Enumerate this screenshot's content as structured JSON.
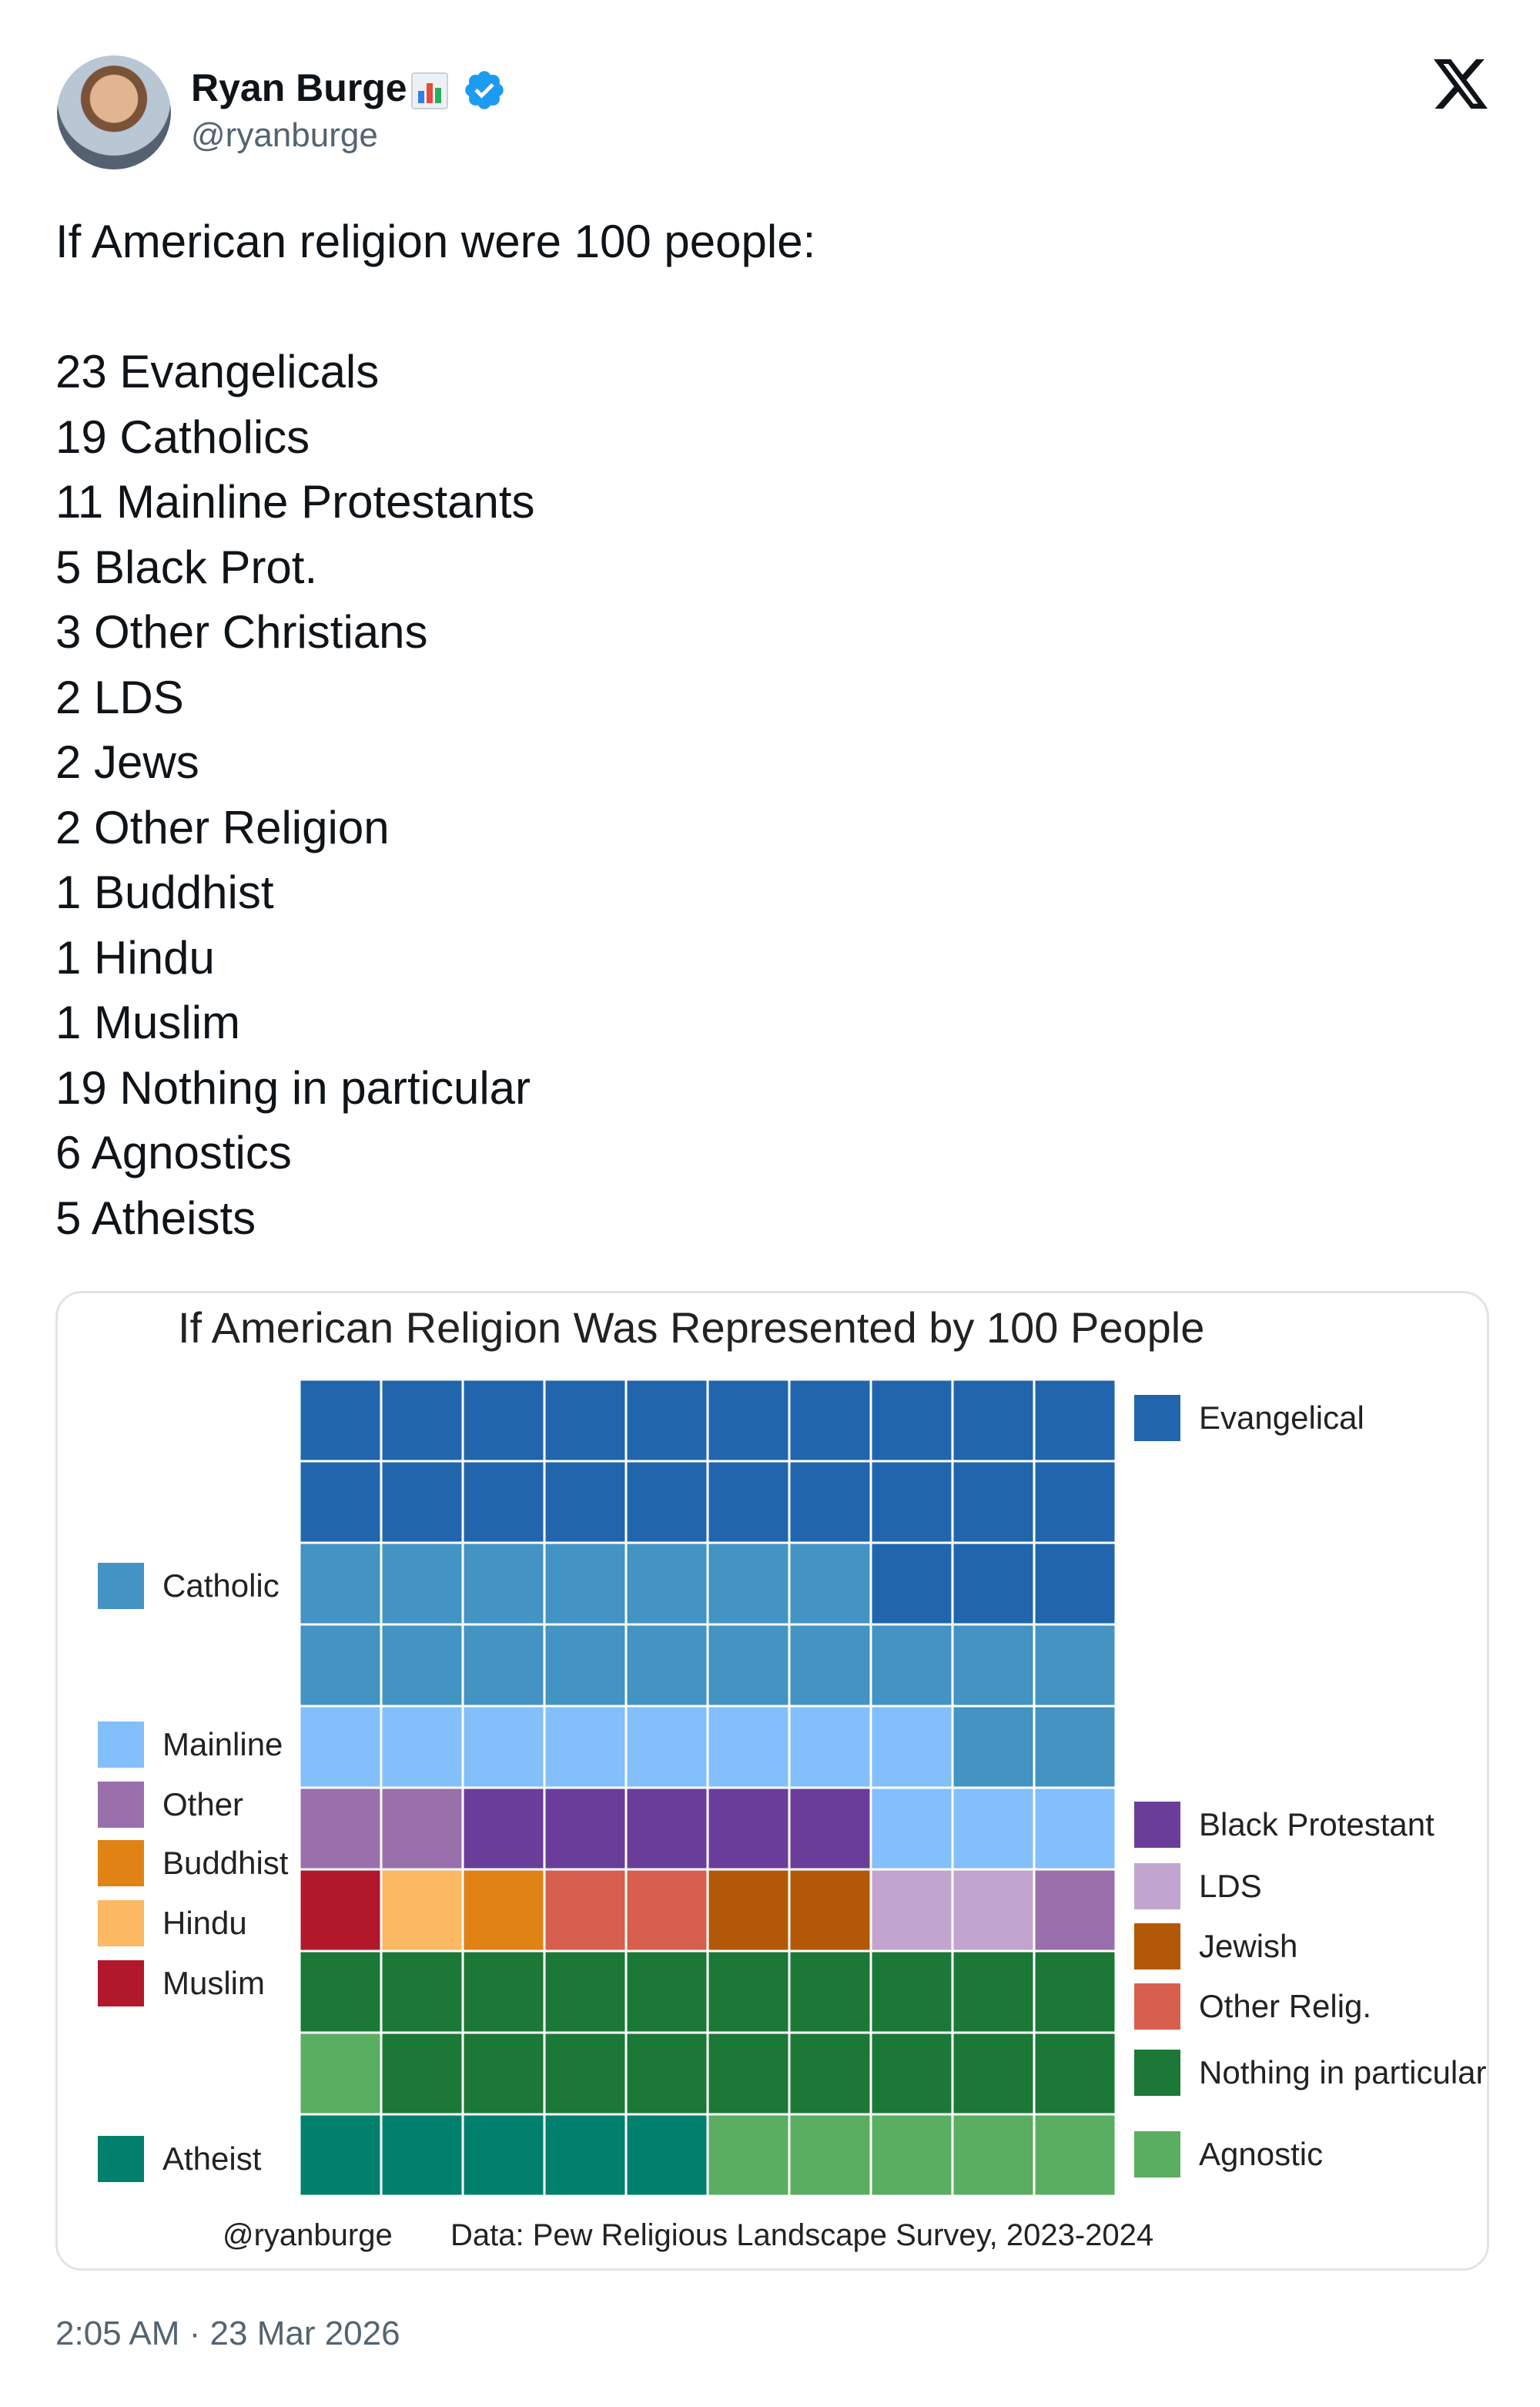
{
  "post": {
    "author_name": "Ryan Burge",
    "author_emoji_icon": "bar-chart-icon",
    "verified": true,
    "handle": "@ryanburge",
    "text_intro": "If American religion were 100 people:",
    "lines": [
      "23 Evangelicals",
      "19 Catholics",
      "11 Mainline Protestants",
      "5 Black Prot.",
      "3 Other Christians",
      "2 LDS",
      "2 Jews",
      "2 Other Religion",
      "1 Buddhist",
      "1 Hindu",
      "1 Muslim",
      "19 Nothing in particular",
      "6 Agnostics",
      "5 Atheists"
    ],
    "timestamp": "2:05 AM · 23 Mar 2026"
  },
  "colors": {
    "verified_blue": "#1d9bf0",
    "handle_gray": "#536471"
  },
  "chart_data": {
    "type": "waffle",
    "title": "If American Religion Was Represented by 100 People",
    "grid_rows": 10,
    "grid_cols": 10,
    "categories": [
      {
        "key": "Evangelical",
        "label": "Evangelical",
        "value": 23,
        "color": "#2166ac"
      },
      {
        "key": "Catholic",
        "label": "Catholic",
        "value": 19,
        "color": "#4393c3"
      },
      {
        "key": "Mainline",
        "label": "Mainline",
        "value": 11,
        "color": "#82bffb"
      },
      {
        "key": "BlackProtestant",
        "label": "Black Protestant",
        "value": 5,
        "color": "#6a3d9a"
      },
      {
        "key": "Other",
        "label": "Other",
        "value": 3,
        "color": "#9970ab"
      },
      {
        "key": "LDS",
        "label": "LDS",
        "value": 2,
        "color": "#c2a5cf"
      },
      {
        "key": "Jewish",
        "label": "Jewish",
        "value": 2,
        "color": "#b35806"
      },
      {
        "key": "OtherRelig",
        "label": "Other Relig.",
        "value": 2,
        "color": "#d6604d"
      },
      {
        "key": "Buddhist",
        "label": "Buddhist",
        "value": 1,
        "color": "#e08214"
      },
      {
        "key": "Hindu",
        "label": "Hindu",
        "value": 1,
        "color": "#fdb863"
      },
      {
        "key": "Muslim",
        "label": "Muslim",
        "value": 1,
        "color": "#b2182b"
      },
      {
        "key": "Nothing",
        "label": "Nothing in particular",
        "value": 19,
        "color": "#1b7837"
      },
      {
        "key": "Agnostic",
        "label": "Agnostic",
        "value": 6,
        "color": "#5aae61"
      },
      {
        "key": "Atheist",
        "label": "Atheist",
        "value": 5,
        "color": "#01806d"
      }
    ],
    "cells_by_row": [
      [
        "Evangelical",
        "Evangelical",
        "Evangelical",
        "Evangelical",
        "Evangelical",
        "Evangelical",
        "Evangelical",
        "Evangelical",
        "Evangelical",
        "Evangelical"
      ],
      [
        "Evangelical",
        "Evangelical",
        "Evangelical",
        "Evangelical",
        "Evangelical",
        "Evangelical",
        "Evangelical",
        "Evangelical",
        "Evangelical",
        "Evangelical"
      ],
      [
        "Catholic",
        "Catholic",
        "Catholic",
        "Catholic",
        "Catholic",
        "Catholic",
        "Catholic",
        "Evangelical",
        "Evangelical",
        "Evangelical"
      ],
      [
        "Catholic",
        "Catholic",
        "Catholic",
        "Catholic",
        "Catholic",
        "Catholic",
        "Catholic",
        "Catholic",
        "Catholic",
        "Catholic"
      ],
      [
        "Mainline",
        "Mainline",
        "Mainline",
        "Mainline",
        "Mainline",
        "Mainline",
        "Mainline",
        "Mainline",
        "Catholic",
        "Catholic"
      ],
      [
        "Other",
        "Other",
        "BlackProtestant",
        "BlackProtestant",
        "BlackProtestant",
        "BlackProtestant",
        "BlackProtestant",
        "Mainline",
        "Mainline",
        "Mainline"
      ],
      [
        "Muslim",
        "Hindu",
        "Buddhist",
        "OtherRelig",
        "OtherRelig",
        "Jewish",
        "Jewish",
        "LDS",
        "LDS",
        "Other"
      ],
      [
        "Nothing",
        "Nothing",
        "Nothing",
        "Nothing",
        "Nothing",
        "Nothing",
        "Nothing",
        "Nothing",
        "Nothing",
        "Nothing"
      ],
      [
        "Agnostic",
        "Nothing",
        "Nothing",
        "Nothing",
        "Nothing",
        "Nothing",
        "Nothing",
        "Nothing",
        "Nothing",
        "Nothing"
      ],
      [
        "Atheist",
        "Atheist",
        "Atheist",
        "Atheist",
        "Atheist",
        "Agnostic",
        "Agnostic",
        "Agnostic",
        "Agnostic",
        "Agnostic"
      ]
    ],
    "legend_left": [
      "Catholic",
      "Mainline",
      "Other",
      "Buddhist",
      "Hindu",
      "Muslim",
      "Atheist"
    ],
    "legend_right": [
      "Evangelical",
      "BlackProtestant",
      "LDS",
      "Jewish",
      "OtherRelig",
      "Nothing",
      "Agnostic"
    ],
    "caption_left": "@ryanburge",
    "caption_right": "Data: Pew Religious Landscape Survey, 2023-2024"
  }
}
